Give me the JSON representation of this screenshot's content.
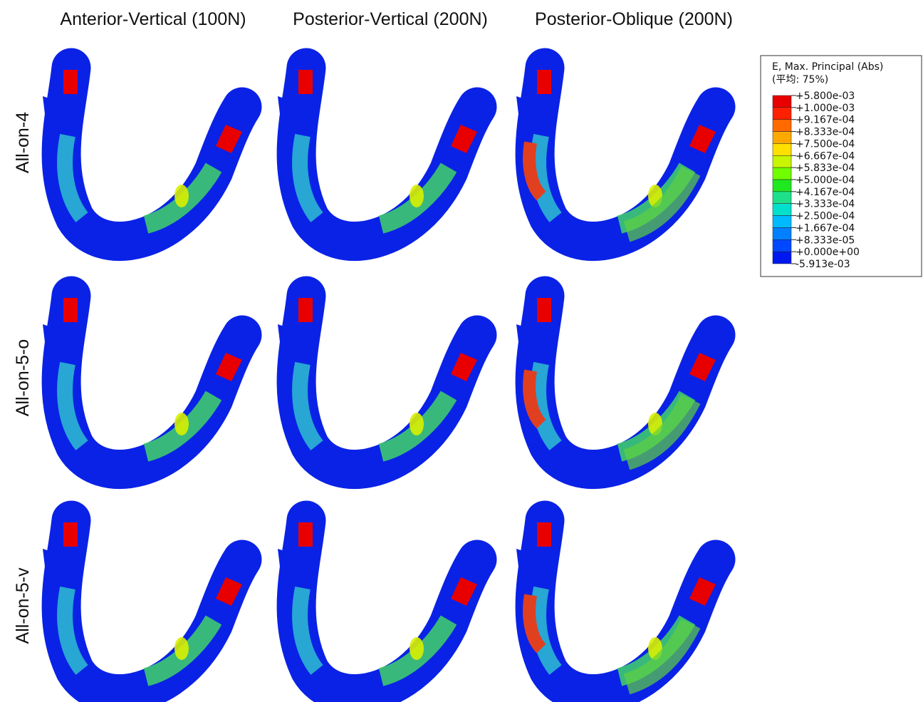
{
  "columns": [
    "Anterior-Vertical (100N)",
    "Posterior-Vertical (200N)",
    "Posterior-Oblique (200N)"
  ],
  "rows": [
    "All-on-4",
    "All-on-5-o",
    "All-on-5-v"
  ],
  "legend": {
    "title": "E, Max. Principal (Abs)",
    "subtitle": "(平均: 75%)",
    "labels": [
      "+5.800e-03",
      "+1.000e-03",
      "+9.167e-04",
      "+8.333e-04",
      "+7.500e-04",
      "+6.667e-04",
      "+5.833e-04",
      "+5.000e-04",
      "+4.167e-04",
      "+3.333e-04",
      "+2.500e-04",
      "+1.667e-04",
      "+8.333e-05",
      "+0.000e+00",
      "-5.913e-03"
    ],
    "colors": [
      "#e80000",
      "#ff2000",
      "#ff6a00",
      "#ffa800",
      "#ffe000",
      "#c8f500",
      "#70ff00",
      "#20e820",
      "#1ee08a",
      "#00e0cc",
      "#00baff",
      "#0080ff",
      "#0048ff",
      "#0018f0"
    ]
  }
}
